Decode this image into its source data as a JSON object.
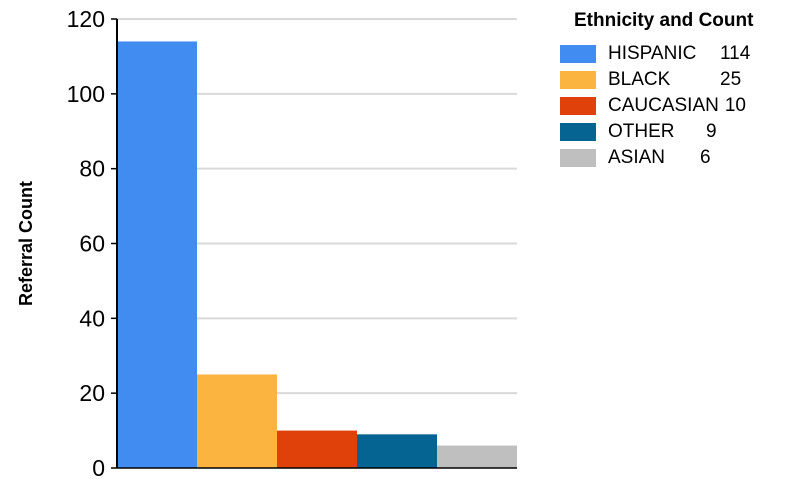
{
  "chart_data": {
    "type": "bar",
    "title": "",
    "xlabel": "",
    "ylabel": "Referral Count",
    "ylim": [
      0,
      120
    ],
    "yticks": [
      0,
      20,
      40,
      60,
      80,
      100,
      120
    ],
    "grid": true,
    "legend_placement": "top-right",
    "legend_title": "Ethnicity and Count",
    "categories": [
      "HISPANIC",
      "BLACK",
      "CAUCASIAN",
      "OTHER",
      "ASIAN"
    ],
    "values": [
      114,
      25,
      10,
      9,
      6
    ],
    "colors": [
      "#418cf0",
      "#fcb441",
      "#e0400a",
      "#056492",
      "#bfbfbf"
    ],
    "legend_counts": [
      "114",
      "25",
      "10",
      "9",
      "6"
    ]
  }
}
